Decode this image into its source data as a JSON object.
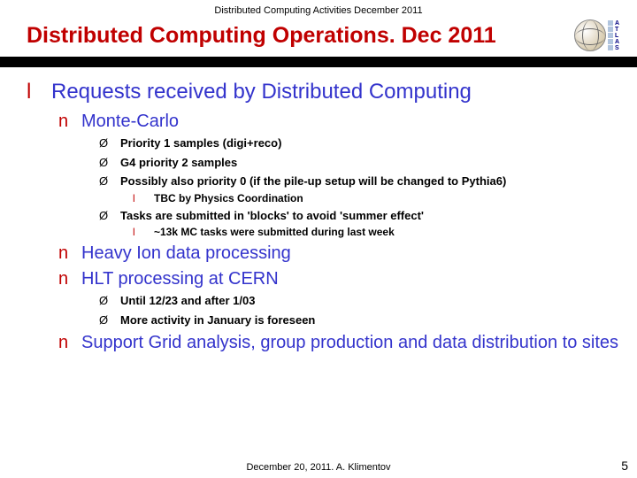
{
  "header": {
    "top_text": "Distributed Computing Activities December 2011",
    "title": "Distributed Computing Operations. Dec 2011",
    "logo_label": "ATLAS"
  },
  "main": {
    "heading": "Requests received by Distributed Computing",
    "sections": [
      {
        "label": "Monte-Carlo",
        "arrows": [
          {
            "text": "Priority 1 samples (digi+reco)",
            "subs": []
          },
          {
            "text": "G4 priority 2 samples",
            "subs": []
          },
          {
            "text": "Possibly also priority 0 (if the pile-up setup will be changed to Pythia6)",
            "subs": [
              "TBC by Physics Coordination"
            ]
          },
          {
            "text": "Tasks are submitted in 'blocks' to avoid 'summer effect'",
            "subs": [
              "~13k MC tasks were submitted during last week"
            ]
          }
        ]
      },
      {
        "label": "Heavy Ion data processing",
        "arrows": []
      },
      {
        "label": "HLT processing at CERN",
        "arrows": [
          {
            "text": "Until 12/23 and after 1/03",
            "subs": []
          },
          {
            "text": "More activity in January is foreseen",
            "subs": []
          }
        ]
      },
      {
        "label": "Support Grid analysis, group production and data distribution to sites",
        "arrows": []
      }
    ]
  },
  "footer": {
    "text": "December 20, 2011. A. Klimentov",
    "page": "5"
  },
  "colors": {
    "title_red": "#c00000",
    "body_blue": "#3333cc",
    "black": "#000000",
    "background": "#ffffff"
  }
}
